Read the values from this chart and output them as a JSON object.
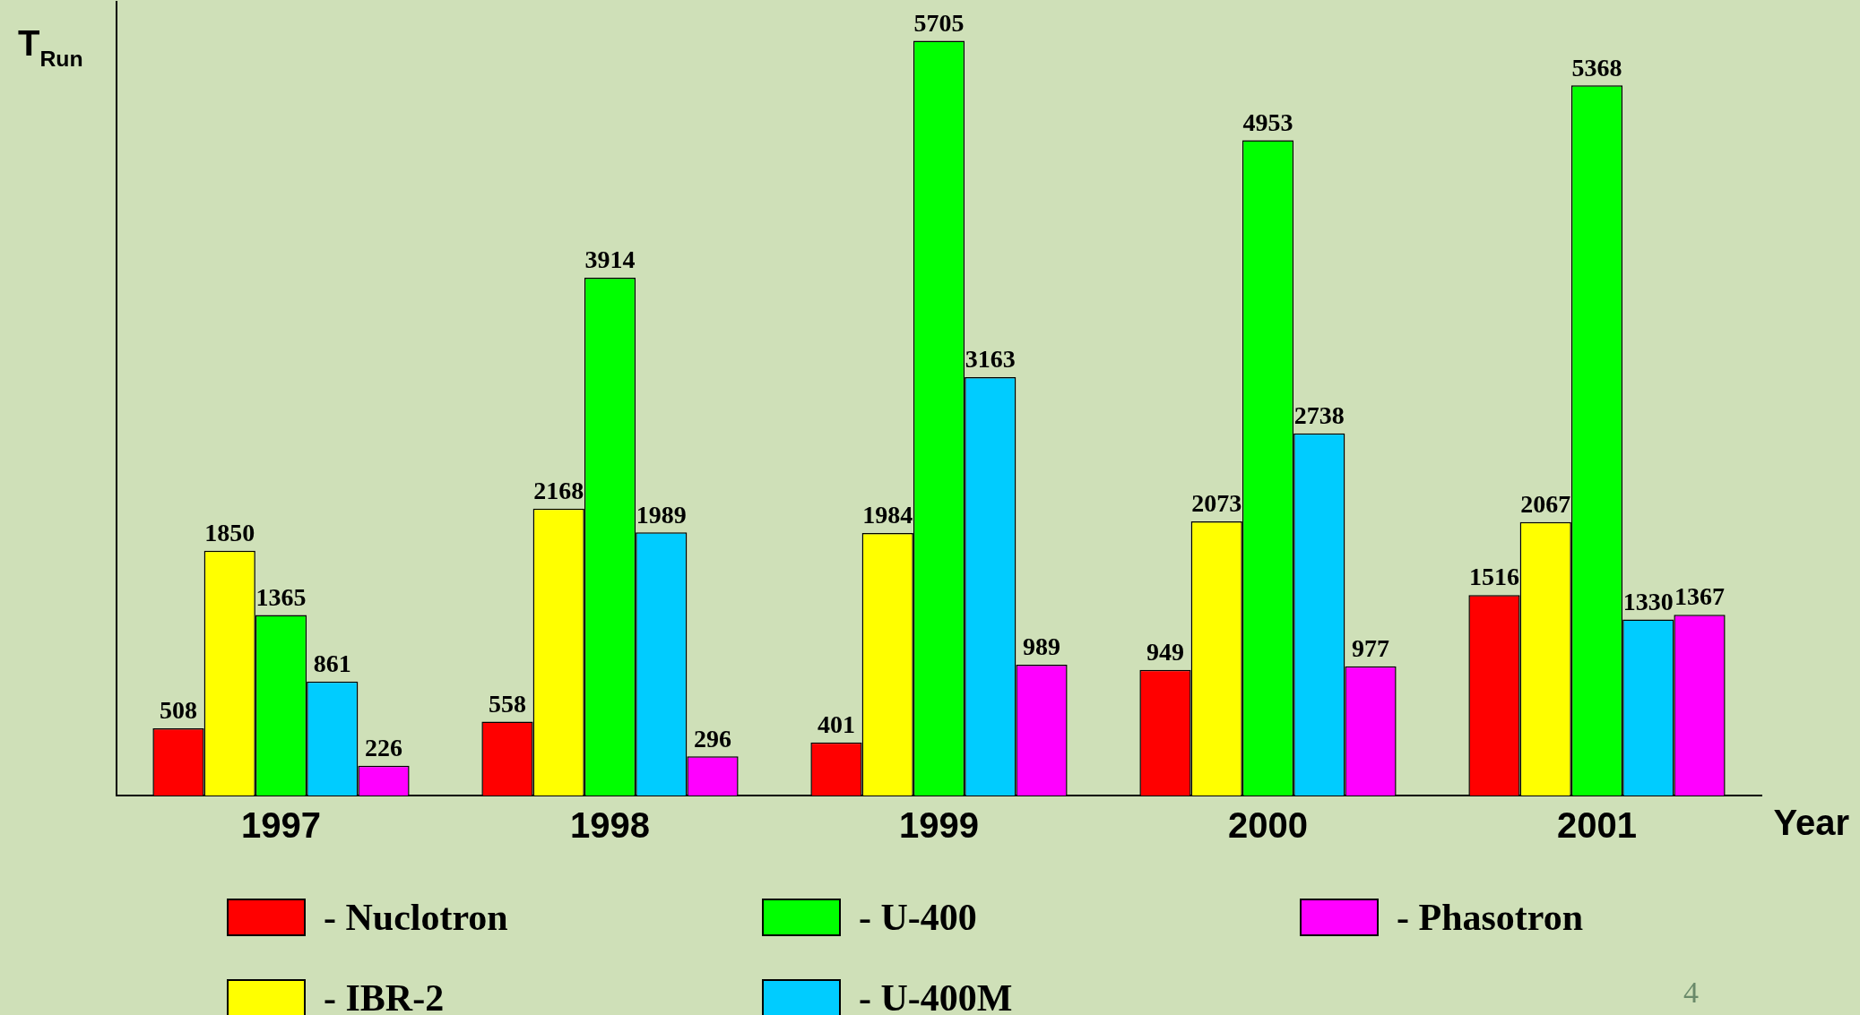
{
  "chart_data": {
    "type": "bar",
    "ylabel": "T$_{Run}$",
    "xlabel": "Year",
    "categories": [
      "1997",
      "1998",
      "1999",
      "2000",
      "2001"
    ],
    "series": [
      {
        "name": "- Nuclotron",
        "color": "#ff0000",
        "values": [
          508,
          558,
          401,
          949,
          1516
        ]
      },
      {
        "name": "- IBR-2",
        "color": "#ffff00",
        "values": [
          1850,
          2168,
          1984,
          2073,
          2067
        ]
      },
      {
        "name": "- U-400",
        "color": "#00ff00",
        "values": [
          1365,
          3914,
          5705,
          4953,
          5368
        ]
      },
      {
        "name": "- U-400M",
        "color": "#00ccff",
        "values": [
          861,
          1989,
          3163,
          2738,
          1330
        ]
      },
      {
        "name": "- Phasotron",
        "color": "#ff00ff",
        "values": [
          226,
          296,
          989,
          977,
          1367
        ]
      }
    ],
    "ylim": [
      0,
      6000
    ],
    "tick_labels": "x",
    "grid": false,
    "legend": "bottom",
    "data_labels": true,
    "annotations": [
      "4"
    ]
  }
}
